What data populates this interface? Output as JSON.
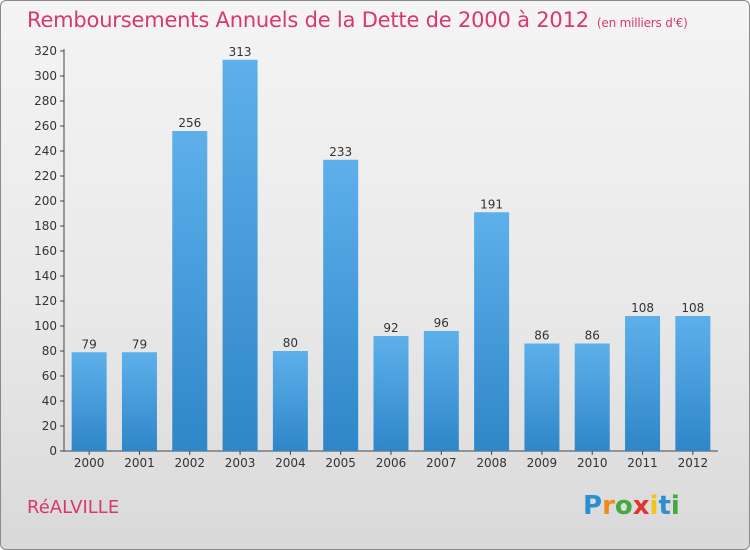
{
  "title": "Remboursements Annuels de la Dette de 2000 à 2012",
  "subtitle": "(en milliers d'€)",
  "commune": "RéALVILLE",
  "brand": {
    "letters": [
      "P",
      "r",
      "o",
      "x",
      "i",
      "t",
      "i"
    ],
    "colors": [
      "#2b8fd1",
      "#f08a1c",
      "#45a842",
      "#e0362f",
      "#f0c419",
      "#2b8fd1",
      "#45a842"
    ]
  },
  "chart_data": {
    "type": "bar",
    "categories": [
      "2000",
      "2001",
      "2002",
      "2003",
      "2004",
      "2005",
      "2006",
      "2007",
      "2008",
      "2009",
      "2010",
      "2011",
      "2012"
    ],
    "values": [
      79,
      79,
      256,
      313,
      80,
      233,
      92,
      96,
      191,
      86,
      86,
      108,
      108
    ],
    "ylim": [
      0,
      320
    ],
    "yticks": [
      0,
      20,
      40,
      60,
      80,
      100,
      120,
      140,
      160,
      180,
      200,
      220,
      240,
      260,
      280,
      300,
      320
    ],
    "grid": false,
    "bar_color_top": "#5db0ea",
    "bar_color_bottom": "#2f86c8"
  }
}
